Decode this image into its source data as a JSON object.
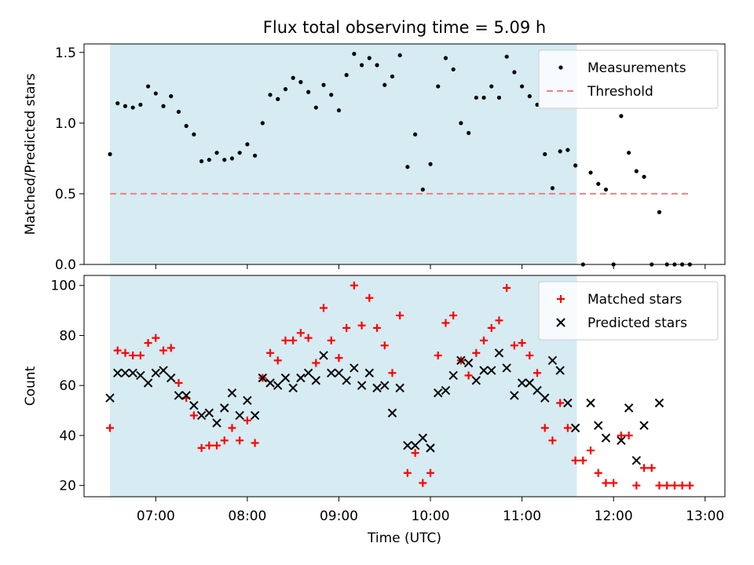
{
  "chart_data": {
    "title": "Flux total observing time = 5.09 h",
    "colors": {
      "shade": "#add8e6",
      "threshold": "#f08080",
      "matched": "#ff0000",
      "predicted": "#000000",
      "measurements": "#000000"
    },
    "x_axis": {
      "label": "Time (UTC)",
      "domain": [
        "06:13",
        "13:13"
      ],
      "ticks": [
        "07:00",
        "08:00",
        "09:00",
        "10:00",
        "11:00",
        "12:00",
        "13:00"
      ]
    },
    "shaded_interval": [
      "06:30",
      "11:36"
    ],
    "panels": [
      {
        "type": "scatter",
        "ylabel": "Matched/Predicted stars",
        "ylim": [
          0,
          1.56
        ],
        "yticks": [
          "0.0",
          "0.5",
          "1.0",
          "1.5"
        ],
        "legend_position": "top-right",
        "series": [
          {
            "name": "Measurements",
            "kind": "dot",
            "points": [
              [
                "06:30",
                0.78
              ],
              [
                "06:35",
                1.14
              ],
              [
                "06:40",
                1.12
              ],
              [
                "06:45",
                1.11
              ],
              [
                "06:50",
                1.13
              ],
              [
                "06:55",
                1.26
              ],
              [
                "07:00",
                1.21
              ],
              [
                "07:05",
                1.12
              ],
              [
                "07:10",
                1.19
              ],
              [
                "07:15",
                1.08
              ],
              [
                "07:20",
                0.98
              ],
              [
                "07:25",
                0.92
              ],
              [
                "07:30",
                0.73
              ],
              [
                "07:35",
                0.74
              ],
              [
                "07:40",
                0.79
              ],
              [
                "07:45",
                0.74
              ],
              [
                "07:50",
                0.75
              ],
              [
                "07:55",
                0.79
              ],
              [
                "08:00",
                0.85
              ],
              [
                "08:05",
                0.77
              ],
              [
                "08:10",
                1.0
              ],
              [
                "08:15",
                1.2
              ],
              [
                "08:20",
                1.17
              ],
              [
                "08:25",
                1.24
              ],
              [
                "08:30",
                1.32
              ],
              [
                "08:35",
                1.29
              ],
              [
                "08:40",
                1.22
              ],
              [
                "08:45",
                1.11
              ],
              [
                "08:50",
                1.27
              ],
              [
                "08:55",
                1.2
              ],
              [
                "09:00",
                1.09
              ],
              [
                "09:05",
                1.34
              ],
              [
                "09:10",
                1.49
              ],
              [
                "09:15",
                1.41
              ],
              [
                "09:20",
                1.46
              ],
              [
                "09:25",
                1.41
              ],
              [
                "09:30",
                1.27
              ],
              [
                "09:35",
                1.33
              ],
              [
                "09:40",
                1.48
              ],
              [
                "09:45",
                0.69
              ],
              [
                "09:50",
                0.92
              ],
              [
                "09:55",
                0.53
              ],
              [
                "10:00",
                0.71
              ],
              [
                "10:05",
                1.26
              ],
              [
                "10:10",
                1.46
              ],
              [
                "10:15",
                1.38
              ],
              [
                "10:20",
                1.0
              ],
              [
                "10:25",
                0.93
              ],
              [
                "10:30",
                1.18
              ],
              [
                "10:35",
                1.18
              ],
              [
                "10:40",
                1.26
              ],
              [
                "10:45",
                1.18
              ],
              [
                "10:50",
                1.47
              ],
              [
                "10:55",
                1.36
              ],
              [
                "11:00",
                1.26
              ],
              [
                "11:05",
                1.19
              ],
              [
                "11:10",
                1.13
              ],
              [
                "11:15",
                0.78
              ],
              [
                "11:20",
                0.54
              ],
              [
                "11:25",
                0.8
              ],
              [
                "11:30",
                0.81
              ],
              [
                "11:35",
                0.7
              ],
              [
                "11:40",
                0.0
              ],
              [
                "11:45",
                0.65
              ],
              [
                "11:50",
                0.57
              ],
              [
                "11:55",
                0.53
              ],
              [
                "12:00",
                0.0
              ],
              [
                "12:05",
                1.05
              ],
              [
                "12:10",
                0.79
              ],
              [
                "12:15",
                0.66
              ],
              [
                "12:20",
                0.62
              ],
              [
                "12:25",
                0.0
              ],
              [
                "12:30",
                0.37
              ],
              [
                "12:35",
                0.0
              ],
              [
                "12:40",
                0.0
              ],
              [
                "12:45",
                0.0
              ],
              [
                "12:50",
                0.0
              ]
            ]
          },
          {
            "name": "Threshold",
            "kind": "dashed-line",
            "points": [
              [
                "06:30",
                0.5
              ],
              [
                "12:50",
                0.5
              ]
            ]
          }
        ]
      },
      {
        "type": "scatter",
        "ylabel": "Count",
        "ylim": [
          15.5,
          104
        ],
        "yticks": [
          "20",
          "40",
          "60",
          "80",
          "100"
        ],
        "legend_position": "top-right",
        "series": [
          {
            "name": "Matched stars",
            "kind": "plus",
            "points": [
              [
                "06:30",
                43
              ],
              [
                "06:35",
                74
              ],
              [
                "06:40",
                73
              ],
              [
                "06:45",
                72
              ],
              [
                "06:50",
                72
              ],
              [
                "06:55",
                77
              ],
              [
                "07:00",
                79
              ],
              [
                "07:05",
                74
              ],
              [
                "07:10",
                75
              ],
              [
                "07:15",
                61
              ],
              [
                "07:20",
                55
              ],
              [
                "07:25",
                48
              ],
              [
                "07:30",
                35
              ],
              [
                "07:35",
                36
              ],
              [
                "07:40",
                36
              ],
              [
                "07:45",
                38
              ],
              [
                "07:50",
                43
              ],
              [
                "07:55",
                38
              ],
              [
                "08:00",
                46
              ],
              [
                "08:05",
                37
              ],
              [
                "08:10",
                63
              ],
              [
                "08:15",
                73
              ],
              [
                "08:20",
                70
              ],
              [
                "08:25",
                78
              ],
              [
                "08:30",
                78
              ],
              [
                "08:35",
                81
              ],
              [
                "08:40",
                79
              ],
              [
                "08:45",
                69
              ],
              [
                "08:50",
                91
              ],
              [
                "08:55",
                78
              ],
              [
                "09:00",
                71
              ],
              [
                "09:05",
                83
              ],
              [
                "09:10",
                100
              ],
              [
                "09:15",
                84
              ],
              [
                "09:20",
                95
              ],
              [
                "09:25",
                83
              ],
              [
                "09:30",
                76
              ],
              [
                "09:35",
                65
              ],
              [
                "09:40",
                88
              ],
              [
                "09:45",
                25
              ],
              [
                "09:50",
                33
              ],
              [
                "09:55",
                21
              ],
              [
                "10:00",
                25
              ],
              [
                "10:05",
                72
              ],
              [
                "10:10",
                85
              ],
              [
                "10:15",
                88
              ],
              [
                "10:20",
                70
              ],
              [
                "10:25",
                64
              ],
              [
                "10:30",
                73
              ],
              [
                "10:35",
                78
              ],
              [
                "10:40",
                83
              ],
              [
                "10:45",
                86
              ],
              [
                "10:50",
                99
              ],
              [
                "10:55",
                76
              ],
              [
                "11:00",
                77
              ],
              [
                "11:05",
                72
              ],
              [
                "11:10",
                65
              ],
              [
                "11:15",
                43
              ],
              [
                "11:20",
                38
              ],
              [
                "11:25",
                53
              ],
              [
                "11:30",
                43
              ],
              [
                "11:35",
                30
              ],
              [
                "11:40",
                30
              ],
              [
                "11:45",
                34
              ],
              [
                "11:50",
                25
              ],
              [
                "11:55",
                21
              ],
              [
                "12:00",
                21
              ],
              [
                "12:05",
                40
              ],
              [
                "12:10",
                40
              ],
              [
                "12:15",
                20
              ],
              [
                "12:20",
                27
              ],
              [
                "12:25",
                27
              ],
              [
                "12:30",
                20
              ],
              [
                "12:35",
                20
              ],
              [
                "12:40",
                20
              ],
              [
                "12:45",
                20
              ],
              [
                "12:50",
                20
              ]
            ]
          },
          {
            "name": "Predicted stars",
            "kind": "cross",
            "points": [
              [
                "06:30",
                55
              ],
              [
                "06:35",
                65
              ],
              [
                "06:40",
                65
              ],
              [
                "06:45",
                65
              ],
              [
                "06:50",
                64
              ],
              [
                "06:55",
                61
              ],
              [
                "07:00",
                65
              ],
              [
                "07:05",
                66
              ],
              [
                "07:10",
                63
              ],
              [
                "07:15",
                56
              ],
              [
                "07:20",
                56
              ],
              [
                "07:25",
                52
              ],
              [
                "07:30",
                48
              ],
              [
                "07:35",
                49
              ],
              [
                "07:40",
                45
              ],
              [
                "07:45",
                51
              ],
              [
                "07:50",
                57
              ],
              [
                "07:55",
                48
              ],
              [
                "08:00",
                54
              ],
              [
                "08:05",
                48
              ],
              [
                "08:10",
                63
              ],
              [
                "08:15",
                61
              ],
              [
                "08:20",
                60
              ],
              [
                "08:25",
                63
              ],
              [
                "08:30",
                59
              ],
              [
                "08:35",
                63
              ],
              [
                "08:40",
                65
              ],
              [
                "08:45",
                62
              ],
              [
                "08:50",
                72
              ],
              [
                "08:55",
                65
              ],
              [
                "09:00",
                65
              ],
              [
                "09:05",
                62
              ],
              [
                "09:10",
                67
              ],
              [
                "09:15",
                60
              ],
              [
                "09:20",
                65
              ],
              [
                "09:25",
                59
              ],
              [
                "09:30",
                60
              ],
              [
                "09:35",
                49
              ],
              [
                "09:40",
                59
              ],
              [
                "09:45",
                36
              ],
              [
                "09:50",
                36
              ],
              [
                "09:55",
                39
              ],
              [
                "10:00",
                35
              ],
              [
                "10:05",
                57
              ],
              [
                "10:10",
                58
              ],
              [
                "10:15",
                64
              ],
              [
                "10:20",
                70
              ],
              [
                "10:25",
                69
              ],
              [
                "10:30",
                62
              ],
              [
                "10:35",
                66
              ],
              [
                "10:40",
                66
              ],
              [
                "10:45",
                73
              ],
              [
                "10:50",
                67
              ],
              [
                "10:55",
                56
              ],
              [
                "11:00",
                61
              ],
              [
                "11:05",
                61
              ],
              [
                "11:10",
                58
              ],
              [
                "11:15",
                55
              ],
              [
                "11:20",
                70
              ],
              [
                "11:25",
                66
              ],
              [
                "11:30",
                53
              ],
              [
                "11:35",
                43
              ],
              [
                "11:45",
                53
              ],
              [
                "11:50",
                44
              ],
              [
                "11:55",
                39
              ],
              [
                "12:05",
                38
              ],
              [
                "12:10",
                51
              ],
              [
                "12:15",
                30
              ],
              [
                "12:20",
                44
              ],
              [
                "12:30",
                53
              ]
            ]
          }
        ]
      }
    ]
  }
}
